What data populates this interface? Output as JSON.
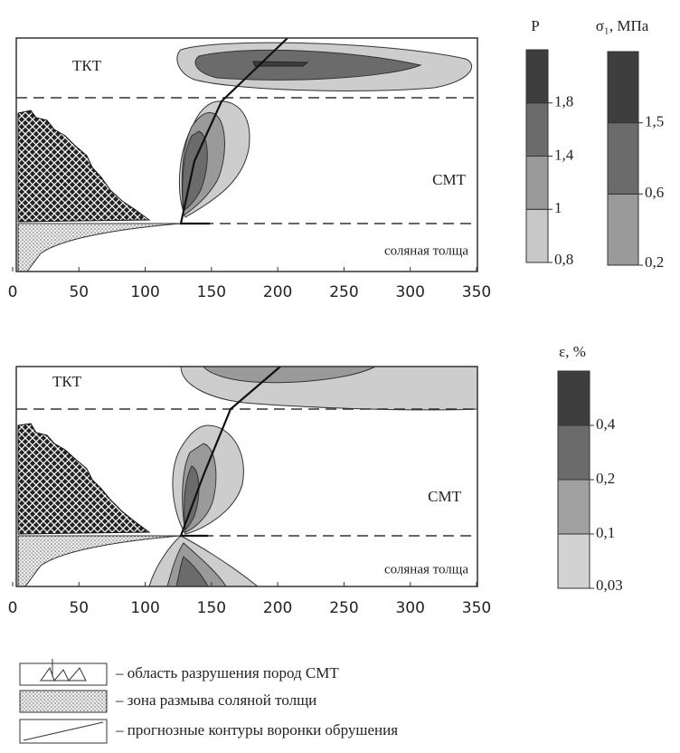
{
  "chart_data": [
    {
      "type": "contour",
      "xlim": [
        0,
        350
      ],
      "xticks": [
        0,
        50,
        100,
        150,
        200,
        250,
        300,
        350
      ],
      "annotations": [
        "ТКТ",
        "СМТ",
        "соляная толща"
      ],
      "colorbars": [
        {
          "title": "P",
          "ticks": [
            {
              "value": 0.8,
              "label": "0,8"
            },
            {
              "value": 1,
              "label": "1"
            },
            {
              "value": 1.4,
              "label": "1,4"
            },
            {
              "value": 1.8,
              "label": "1,8"
            }
          ],
          "colors": [
            "#c8c8c8",
            "#9a9a9a",
            "#6b6b6b",
            "#3e3e3e"
          ]
        },
        {
          "title": "σ₁, МПа",
          "ticks": [
            {
              "value": 0.2,
              "label": "0,2"
            },
            {
              "value": 0.6,
              "label": "0,6"
            },
            {
              "value": 1.5,
              "label": "1,5"
            }
          ],
          "colors": [
            "#9a9a9a",
            "#6b6b6b",
            "#3e3e3e"
          ]
        }
      ]
    },
    {
      "type": "contour",
      "xlim": [
        0,
        350
      ],
      "xticks": [
        0,
        50,
        100,
        150,
        200,
        250,
        300,
        350
      ],
      "annotations": [
        "ТКТ",
        "СМТ",
        "соляная толща"
      ],
      "colorbars": [
        {
          "title": "ε, %",
          "ticks": [
            {
              "value": 0.03,
              "label": "0,03"
            },
            {
              "value": 0.1,
              "label": "0,1"
            },
            {
              "value": 0.2,
              "label": "0,2"
            },
            {
              "value": 0.4,
              "label": "0,4"
            }
          ],
          "colors": [
            "#d2d2d2",
            "#a0a0a0",
            "#6b6b6b",
            "#3e3e3e"
          ]
        }
      ]
    }
  ],
  "legend": [
    "– область разрушения пород СМТ",
    "– зона размыва соляной толщи",
    "– прогнозные контуры воронки обрушения"
  ]
}
